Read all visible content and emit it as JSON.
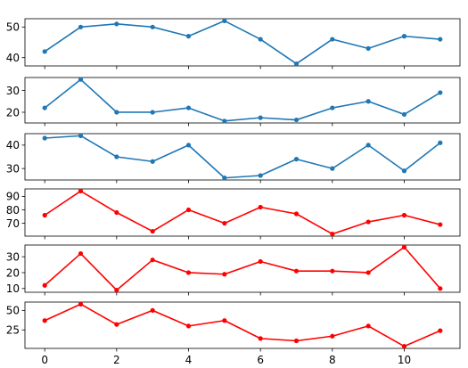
{
  "chart_data": [
    {
      "type": "line",
      "x": [
        0,
        1,
        2,
        3,
        4,
        5,
        6,
        7,
        8,
        9,
        10,
        11
      ],
      "series": [
        {
          "values": [
            42,
            50,
            51,
            50,
            47,
            52,
            46,
            38,
            46,
            43,
            47,
            46
          ],
          "color": "#1f77b4"
        }
      ],
      "ylim": [
        37.3,
        52.7
      ],
      "yticks": [
        40,
        50
      ],
      "xticks": [
        0,
        2,
        4,
        6,
        8,
        10
      ],
      "xlim": [
        -0.55,
        11.55
      ],
      "show_x_labels": false
    },
    {
      "type": "line",
      "x": [
        0,
        1,
        2,
        3,
        4,
        5,
        6,
        7,
        8,
        9,
        10,
        11
      ],
      "series": [
        {
          "values": [
            22,
            35,
            20,
            20,
            22,
            16,
            17.5,
            16.5,
            22,
            25,
            19,
            29
          ],
          "color": "#1f77b4"
        }
      ],
      "ylim": [
        15.1,
        35.9
      ],
      "yticks": [
        20,
        30
      ],
      "xticks": [
        0,
        2,
        4,
        6,
        8,
        10
      ],
      "xlim": [
        -0.55,
        11.55
      ],
      "show_x_labels": false
    },
    {
      "type": "line",
      "x": [
        0,
        1,
        2,
        3,
        4,
        5,
        6,
        7,
        8,
        9,
        10,
        11
      ],
      "series": [
        {
          "values": [
            43,
            44,
            35,
            33,
            40,
            26,
            27,
            34,
            30,
            40,
            29,
            41
          ],
          "color": "#1f77b4"
        }
      ],
      "ylim": [
        25.1,
        44.9
      ],
      "yticks": [
        30,
        40
      ],
      "xticks": [
        0,
        2,
        4,
        6,
        8,
        10
      ],
      "xlim": [
        -0.55,
        11.55
      ],
      "show_x_labels": false
    },
    {
      "type": "line",
      "x": [
        0,
        1,
        2,
        3,
        4,
        5,
        6,
        7,
        8,
        9,
        10,
        11
      ],
      "series": [
        {
          "values": [
            76,
            94,
            78,
            64,
            80,
            70,
            82,
            77,
            62,
            71,
            76,
            69
          ],
          "color": "#ff0000"
        }
      ],
      "ylim": [
        60.4,
        95.6
      ],
      "yticks": [
        70,
        80,
        90
      ],
      "xticks": [
        0,
        2,
        4,
        6,
        8,
        10
      ],
      "xlim": [
        -0.55,
        11.55
      ],
      "show_x_labels": false
    },
    {
      "type": "line",
      "x": [
        0,
        1,
        2,
        3,
        4,
        5,
        6,
        7,
        8,
        9,
        10,
        11
      ],
      "series": [
        {
          "values": [
            12,
            32,
            9,
            28,
            20,
            19,
            27,
            21,
            21,
            20,
            36,
            10
          ],
          "color": "#ff0000"
        }
      ],
      "ylim": [
        7.65,
        37.35
      ],
      "yticks": [
        10,
        20,
        30
      ],
      "xticks": [
        0,
        2,
        4,
        6,
        8,
        10
      ],
      "xlim": [
        -0.55,
        11.55
      ],
      "show_x_labels": false
    },
    {
      "type": "line",
      "x": [
        0,
        1,
        2,
        3,
        4,
        5,
        6,
        7,
        8,
        9,
        10,
        11
      ],
      "series": [
        {
          "values": [
            37,
            58,
            32,
            50,
            30,
            37,
            14,
            11,
            17,
            30,
            4,
            24
          ],
          "color": "#ff0000"
        }
      ],
      "ylim": [
        1.3,
        60.7
      ],
      "yticks": [
        25,
        50
      ],
      "xticks": [
        0,
        2,
        4,
        6,
        8,
        10
      ],
      "xlim": [
        -0.55,
        11.55
      ],
      "show_x_labels": true,
      "xticklabels": [
        "0",
        "2",
        "4",
        "6",
        "8",
        "10"
      ]
    }
  ]
}
